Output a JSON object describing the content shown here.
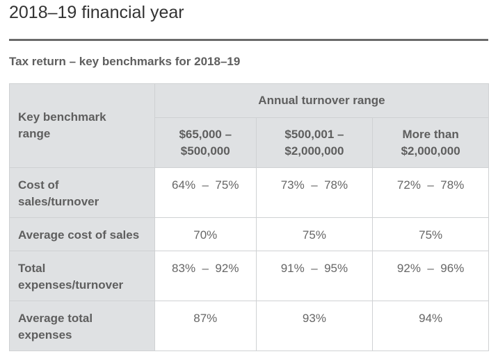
{
  "page_title": "2018–19 financial year",
  "table_title": "Tax return – key benchmarks for 2018–19",
  "table": {
    "corner_header": "Key benchmark range",
    "group_header": "Annual turnover range",
    "columns": [
      "$65,000 – $500,000",
      "$500,001 – $2,000,000",
      "More than $2,000,000"
    ],
    "rows": [
      {
        "label": "Cost of sales/turnover",
        "values": [
          "64%  –  75%",
          "73%  –  78%",
          "72%  –  78%"
        ]
      },
      {
        "label": "Average cost of sales",
        "values": [
          "70%",
          "75%",
          "75%"
        ]
      },
      {
        "label": "Total expenses/turnover",
        "values": [
          "83%  –  92%",
          "91%  –  95%",
          "92%  –  96%"
        ]
      },
      {
        "label": "Average total expenses",
        "values": [
          "87%",
          "93%",
          "94%"
        ]
      }
    ]
  }
}
